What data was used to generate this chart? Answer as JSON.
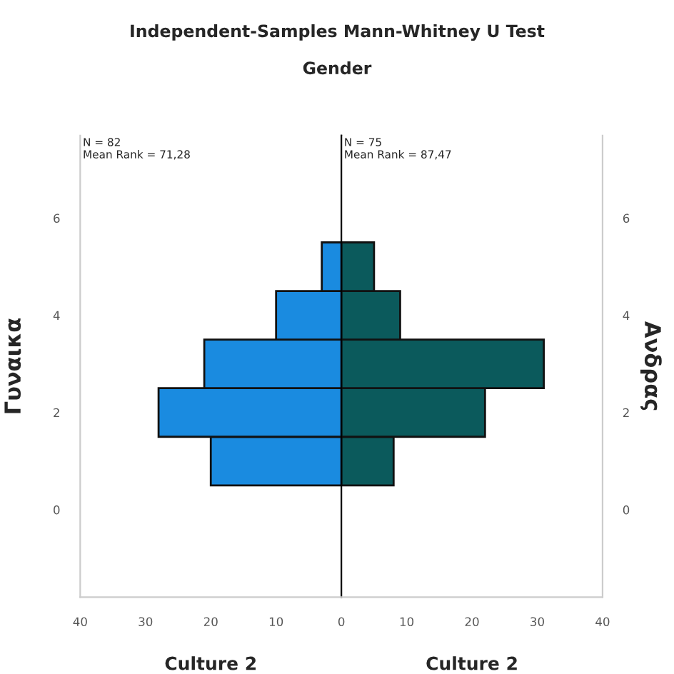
{
  "chart_data": [
    {
      "type": "histogram",
      "title": "Independent-Samples Mann-Whitney U Test",
      "subtitle": "Gender",
      "orientation": "horizontal",
      "bins": [
        0.5,
        1.5,
        2.5,
        3.5,
        4.5,
        5.5
      ],
      "values": [
        20,
        28,
        21,
        10,
        3
      ],
      "color": "#1a8be0",
      "xlim": [
        40,
        0
      ],
      "xticks": [
        40,
        30,
        20,
        10
      ],
      "ylim": [
        -1.8,
        7.7
      ],
      "yticks": [
        0,
        2,
        4,
        6
      ],
      "ylabel": "Γυναικα",
      "xlabel": "Culture 2",
      "annotations": [
        "N = 82",
        "Mean Rank = 71,28"
      ],
      "grid": false
    },
    {
      "type": "histogram",
      "orientation": "horizontal",
      "bins": [
        0.5,
        1.5,
        2.5,
        3.5,
        4.5,
        5.5
      ],
      "values": [
        8,
        22,
        31,
        9,
        5
      ],
      "color": "#0b5a5c",
      "xlim": [
        0,
        40
      ],
      "xticks": [
        0,
        10,
        20,
        30,
        40
      ],
      "ylim": [
        -1.8,
        7.7
      ],
      "yticks": [
        0,
        2,
        4,
        6
      ],
      "ylabel": "Ανδρας",
      "xlabel": "Culture 2",
      "annotations": [
        "N = 75",
        "Mean Rank = 87,47"
      ],
      "grid": false
    }
  ]
}
